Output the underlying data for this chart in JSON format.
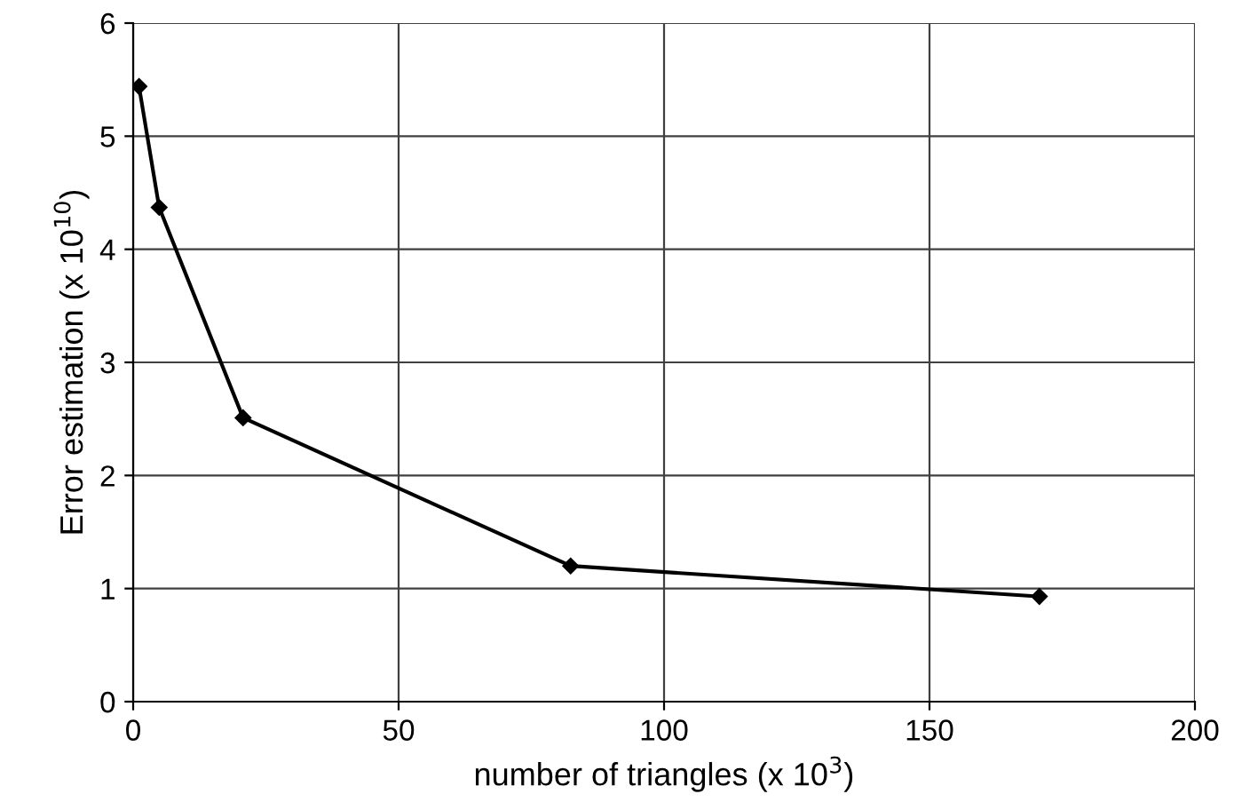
{
  "chart_data": {
    "type": "line",
    "xlabel": "number of triangles (x 10$^{3}$)",
    "ylabel": "Error estimation (x 10$^{10}$)",
    "x": [
      1.1,
      4.9,
      20.7,
      82.4,
      170.7
    ],
    "series": [
      {
        "color": "#000000",
        "values": [
          5.44,
          4.37,
          2.51,
          1.2,
          0.93
        ]
      }
    ],
    "xlim": [
      0,
      200
    ],
    "xticks": [
      0,
      50,
      100,
      150,
      200
    ],
    "ylim": [
      0,
      6
    ],
    "yticks": [
      0,
      1,
      2,
      3,
      4,
      5,
      6
    ],
    "grid": true,
    "marker": "diamond",
    "line_style": "solid",
    "legend": false
  }
}
